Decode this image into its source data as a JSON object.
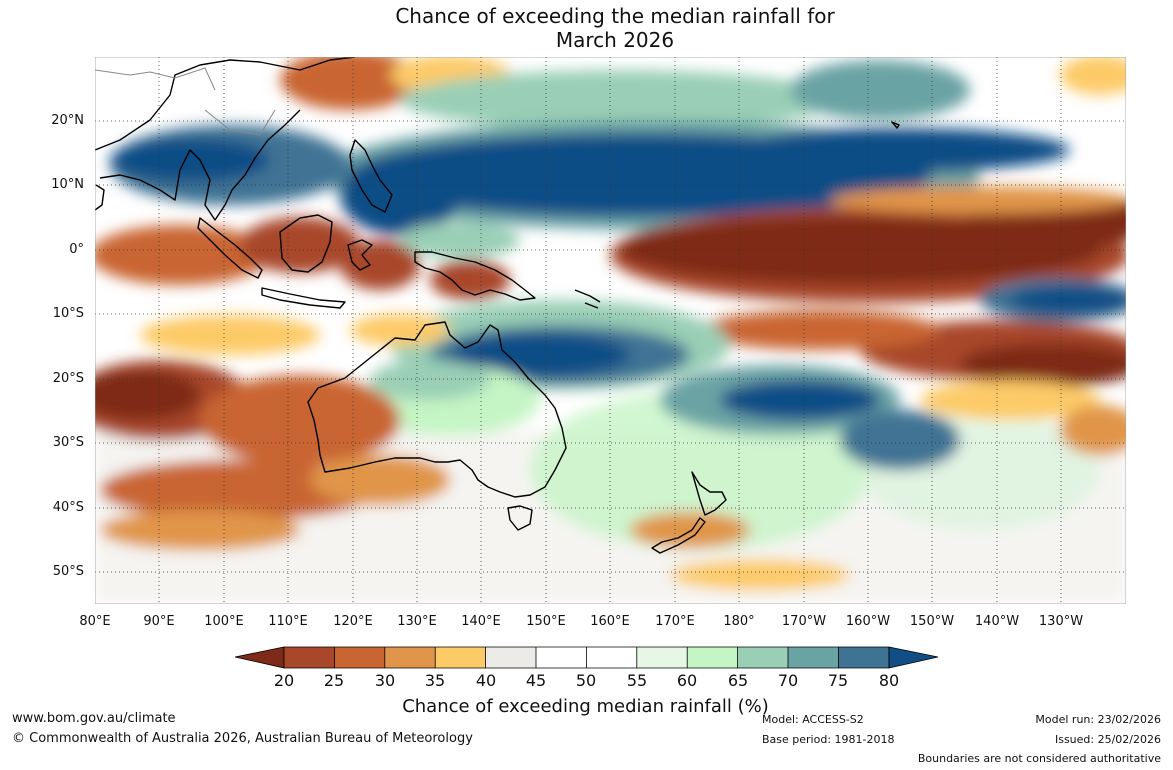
{
  "title": {
    "line1": "Chance of exceeding the median rainfall for",
    "line2": "March 2026"
  },
  "axes": {
    "lat_ticks": [
      "20°N",
      "10°N",
      "0°",
      "10°S",
      "20°S",
      "30°S",
      "40°S",
      "50°S"
    ],
    "lon_ticks": [
      "80°E",
      "90°E",
      "100°E",
      "110°E",
      "120°E",
      "130°E",
      "140°E",
      "150°E",
      "160°E",
      "170°E",
      "180°",
      "170°W",
      "160°W",
      "150°W",
      "140°W",
      "130°W"
    ]
  },
  "colorbar": {
    "labels": [
      "20",
      "25",
      "30",
      "35",
      "40",
      "45",
      "50",
      "55",
      "60",
      "65",
      "70",
      "75",
      "80"
    ],
    "colors": [
      "#7e2a18",
      "#a8472a",
      "#c96532",
      "#e0954a",
      "#fdca68",
      "#ecebe8",
      "#ffffff",
      "#ffffff",
      "#e6f7e6",
      "#c5f5c5",
      "#9acfb6",
      "#6aa3a4",
      "#3f7394",
      "#114e86"
    ],
    "title": "Chance of exceeding median rainfall (%)"
  },
  "footer": {
    "url": "www.bom.gov.au/climate",
    "copyright": "© Commonwealth of Australia 2026, Australian Bureau of Meteorology",
    "model": "Model: ACCESS-S2",
    "base_period": "Base period: 1981-2018",
    "model_run": "Model run: 23/02/2026",
    "issued": "Issued: 25/02/2026",
    "disclaimer": "Boundaries are not considered authoritative"
  }
}
